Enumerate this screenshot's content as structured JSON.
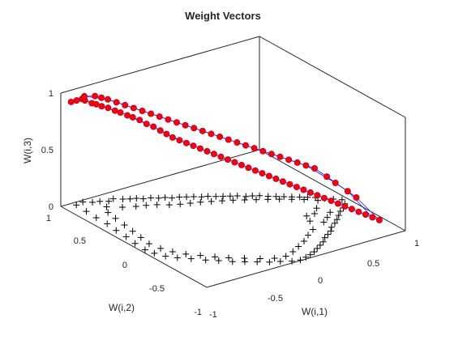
{
  "chart_data": {
    "type": "scatter",
    "title": "Weight Vectors",
    "xlabel": "W(i,1)",
    "ylabel": "W(i,2)",
    "zlabel": "W(i,3)",
    "xlim": [
      -1,
      1
    ],
    "ylim": [
      -1,
      1
    ],
    "zlim": [
      0,
      1
    ],
    "x_ticks": [
      "-1",
      "-0.5",
      "0",
      "0.5",
      "1"
    ],
    "y_ticks": [
      "-1",
      "-0.5",
      "0",
      "0.5",
      "1"
    ],
    "z_ticks": [
      "0",
      "0.5",
      "1"
    ],
    "grid": false,
    "colors": {
      "samples": "#000000",
      "neurons": "#ff0000",
      "links": "#1f1fff"
    },
    "samples_projection": {
      "marker": "+",
      "z": 0,
      "points": [
        [
          -0.88,
          0.95
        ],
        [
          -0.8,
          0.97
        ],
        [
          -0.74,
          0.92
        ],
        [
          -0.68,
          0.9
        ],
        [
          -0.62,
          0.86
        ],
        [
          -0.56,
          0.88
        ],
        [
          -0.5,
          0.83
        ],
        [
          -0.45,
          0.8
        ],
        [
          -0.4,
          0.78
        ],
        [
          -0.36,
          0.74
        ],
        [
          -0.3,
          0.72
        ],
        [
          -0.25,
          0.68
        ],
        [
          -0.2,
          0.66
        ],
        [
          -0.16,
          0.62
        ],
        [
          -0.1,
          0.6
        ],
        [
          -0.05,
          0.57
        ],
        [
          0.0,
          0.54
        ],
        [
          0.05,
          0.5
        ],
        [
          0.1,
          0.48
        ],
        [
          0.15,
          0.44
        ],
        [
          0.2,
          0.41
        ],
        [
          0.25,
          0.38
        ],
        [
          0.3,
          0.35
        ],
        [
          0.35,
          0.3
        ],
        [
          0.4,
          0.28
        ],
        [
          0.45,
          0.25
        ],
        [
          0.5,
          0.2
        ],
        [
          0.55,
          0.16
        ],
        [
          0.6,
          0.12
        ],
        [
          0.65,
          0.08
        ],
        [
          0.7,
          0.04
        ],
        [
          0.75,
          0.0
        ],
        [
          0.8,
          -0.04
        ],
        [
          0.85,
          -0.1
        ],
        [
          0.9,
          -0.15
        ],
        [
          0.95,
          -0.2
        ],
        [
          0.92,
          -0.28
        ],
        [
          0.86,
          -0.34
        ],
        [
          0.8,
          -0.38
        ],
        [
          0.74,
          -0.44
        ],
        [
          0.68,
          -0.5
        ],
        [
          0.62,
          -0.55
        ],
        [
          0.55,
          -0.6
        ],
        [
          0.5,
          -0.66
        ],
        [
          0.44,
          -0.7
        ],
        [
          0.38,
          -0.74
        ],
        [
          0.32,
          -0.8
        ],
        [
          0.26,
          -0.84
        ],
        [
          0.2,
          -0.88
        ],
        [
          0.14,
          -0.92
        ],
        [
          0.08,
          -0.95
        ],
        [
          0.02,
          -0.97
        ],
        [
          -0.05,
          -0.99
        ],
        [
          -0.12,
          -0.97
        ],
        [
          -0.2,
          -0.92
        ],
        [
          -0.28,
          -0.88
        ],
        [
          -0.36,
          -0.82
        ],
        [
          -0.44,
          -0.76
        ],
        [
          -0.52,
          -0.7
        ],
        [
          -0.6,
          -0.62
        ],
        [
          -0.68,
          -0.55
        ],
        [
          -0.76,
          -0.46
        ],
        [
          -0.84,
          -0.38
        ],
        [
          -0.9,
          -0.3
        ],
        [
          -0.94,
          -0.2
        ],
        [
          -0.96,
          -0.1
        ],
        [
          -0.95,
          0.05
        ],
        [
          -0.93,
          0.2
        ],
        [
          -0.92,
          0.35
        ],
        [
          -0.9,
          0.5
        ],
        [
          -0.9,
          0.65
        ],
        [
          -0.89,
          0.8
        ],
        [
          -0.7,
          0.78
        ],
        [
          -0.6,
          0.7
        ],
        [
          -0.5,
          0.65
        ],
        [
          -0.42,
          0.62
        ],
        [
          -0.34,
          0.58
        ],
        [
          -0.26,
          0.52
        ],
        [
          -0.18,
          0.48
        ],
        [
          -0.1,
          0.45
        ],
        [
          -0.02,
          0.42
        ],
        [
          0.06,
          0.38
        ],
        [
          0.14,
          0.34
        ],
        [
          0.22,
          0.3
        ],
        [
          0.3,
          0.25
        ],
        [
          0.38,
          0.2
        ],
        [
          0.46,
          0.15
        ],
        [
          0.54,
          0.1
        ],
        [
          0.62,
          0.04
        ],
        [
          0.7,
          -0.02
        ],
        [
          0.78,
          -0.1
        ],
        [
          0.4,
          -0.55
        ],
        [
          0.3,
          -0.62
        ],
        [
          0.2,
          -0.7
        ],
        [
          0.1,
          -0.76
        ],
        [
          0.0,
          -0.82
        ],
        [
          -0.1,
          -0.86
        ],
        [
          -0.2,
          -0.84
        ],
        [
          -0.3,
          -0.78
        ],
        [
          -0.4,
          -0.7
        ],
        [
          -0.5,
          -0.62
        ],
        [
          -0.58,
          -0.54
        ],
        [
          -0.66,
          -0.45
        ],
        [
          -0.74,
          -0.36
        ],
        [
          -0.8,
          -0.26
        ],
        [
          -0.84,
          -0.15
        ],
        [
          -0.86,
          -0.02
        ],
        [
          -0.84,
          0.12
        ],
        [
          -0.82,
          0.26
        ],
        [
          -0.8,
          0.4
        ],
        [
          -0.78,
          0.55
        ],
        [
          -0.76,
          0.68
        ],
        [
          0.6,
          -0.3
        ],
        [
          0.68,
          -0.22
        ],
        [
          0.72,
          -0.35
        ],
        [
          0.64,
          -0.42
        ],
        [
          0.56,
          -0.48
        ],
        [
          0.48,
          -0.4
        ],
        [
          0.52,
          -0.3
        ]
      ]
    },
    "series": [
      {
        "marker": "circle",
        "points": [
          [
            -0.97,
            0.9,
            0.95
          ],
          [
            -0.93,
            0.88,
            0.96
          ],
          [
            -0.89,
            0.86,
            0.97
          ],
          [
            -0.86,
            0.86,
            0.95
          ],
          [
            -0.82,
            0.82,
            0.93
          ],
          [
            -0.79,
            0.8,
            0.92
          ],
          [
            -0.75,
            0.78,
            0.9
          ],
          [
            -0.7,
            0.76,
            0.88
          ],
          [
            -0.66,
            0.72,
            0.86
          ],
          [
            -0.62,
            0.7,
            0.84
          ],
          [
            -0.58,
            0.66,
            0.82
          ],
          [
            -0.54,
            0.64,
            0.8
          ],
          [
            -0.5,
            0.6,
            0.78
          ],
          [
            -0.46,
            0.56,
            0.75
          ],
          [
            -0.42,
            0.52,
            0.73
          ],
          [
            -0.38,
            0.48,
            0.7
          ],
          [
            -0.34,
            0.45,
            0.67
          ],
          [
            -0.3,
            0.42,
            0.64
          ],
          [
            -0.26,
            0.38,
            0.62
          ],
          [
            -0.22,
            0.34,
            0.6
          ],
          [
            -0.18,
            0.3,
            0.58
          ],
          [
            -0.14,
            0.26,
            0.56
          ],
          [
            -0.1,
            0.22,
            0.54
          ],
          [
            -0.06,
            0.18,
            0.52
          ],
          [
            -0.02,
            0.14,
            0.5
          ],
          [
            0.02,
            0.1,
            0.48
          ],
          [
            0.06,
            0.06,
            0.46
          ],
          [
            0.1,
            0.02,
            0.44
          ],
          [
            0.14,
            -0.02,
            0.42
          ],
          [
            0.18,
            -0.06,
            0.4
          ],
          [
            0.22,
            -0.1,
            0.38
          ],
          [
            0.26,
            -0.14,
            0.36
          ],
          [
            0.3,
            -0.18,
            0.34
          ],
          [
            0.34,
            -0.22,
            0.32
          ],
          [
            0.38,
            -0.26,
            0.3
          ],
          [
            0.42,
            -0.3,
            0.28
          ],
          [
            0.46,
            -0.34,
            0.26
          ],
          [
            0.5,
            -0.38,
            0.24
          ],
          [
            0.54,
            -0.42,
            0.22
          ],
          [
            0.58,
            -0.46,
            0.2
          ],
          [
            0.62,
            -0.5,
            0.18
          ],
          [
            0.66,
            -0.54,
            0.16
          ],
          [
            0.7,
            -0.58,
            0.14
          ],
          [
            0.74,
            -0.62,
            0.12
          ],
          [
            0.78,
            -0.66,
            0.1
          ],
          [
            0.82,
            -0.7,
            0.08
          ],
          [
            0.86,
            -0.74,
            0.06
          ],
          [
            0.9,
            -0.78,
            0.04
          ],
          [
            0.8,
            -0.6,
            0.2
          ],
          [
            0.75,
            -0.55,
            0.25
          ],
          [
            0.7,
            -0.45,
            0.3
          ],
          [
            0.65,
            -0.4,
            0.35
          ],
          [
            0.6,
            -0.3,
            0.4
          ],
          [
            0.55,
            -0.25,
            0.42
          ],
          [
            0.5,
            -0.2,
            0.44
          ],
          [
            0.45,
            -0.15,
            0.46
          ],
          [
            0.4,
            -0.1,
            0.48
          ],
          [
            0.35,
            -0.05,
            0.5
          ],
          [
            0.3,
            0.0,
            0.52
          ],
          [
            0.25,
            0.05,
            0.54
          ],
          [
            0.2,
            0.1,
            0.56
          ],
          [
            0.15,
            0.15,
            0.58
          ],
          [
            0.1,
            0.2,
            0.6
          ],
          [
            0.05,
            0.25,
            0.62
          ],
          [
            0.0,
            0.3,
            0.64
          ],
          [
            -0.05,
            0.35,
            0.66
          ],
          [
            -0.1,
            0.4,
            0.68
          ],
          [
            -0.15,
            0.45,
            0.7
          ],
          [
            -0.2,
            0.5,
            0.72
          ],
          [
            -0.25,
            0.55,
            0.74
          ],
          [
            -0.3,
            0.6,
            0.76
          ],
          [
            -0.35,
            0.65,
            0.78
          ],
          [
            -0.4,
            0.7,
            0.8
          ],
          [
            -0.45,
            0.75,
            0.82
          ],
          [
            -0.5,
            0.8,
            0.84
          ],
          [
            -0.55,
            0.85,
            0.86
          ],
          [
            -0.6,
            0.9,
            0.88
          ],
          [
            -0.65,
            0.92,
            0.9
          ],
          [
            -0.7,
            0.94,
            0.92
          ],
          [
            -0.8,
            0.95,
            0.94
          ]
        ]
      }
    ]
  }
}
